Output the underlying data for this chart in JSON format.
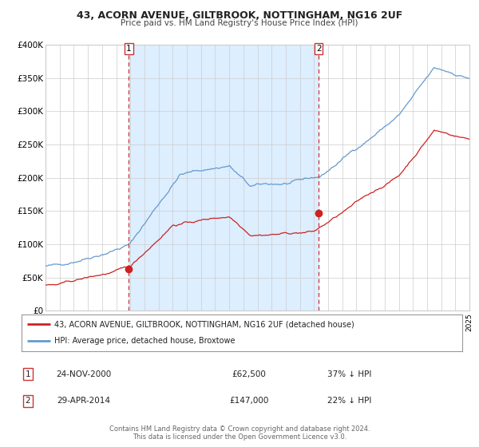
{
  "title": "43, ACORN AVENUE, GILTBROOK, NOTTINGHAM, NG16 2UF",
  "subtitle": "Price paid vs. HM Land Registry's House Price Index (HPI)",
  "background_color": "#ffffff",
  "plot_bg_color": "#ffffff",
  "shaded_region_color": "#ddeeff",
  "grid_color": "#cccccc",
  "hpi_line_color": "#6699cc",
  "price_line_color": "#cc2222",
  "transaction1_x": 2000.9,
  "transaction1_y": 62500,
  "transaction2_x": 2014.33,
  "transaction2_y": 147000,
  "vline_color": "#cc3333",
  "dot_color": "#cc2222",
  "legend_line1": "43, ACORN AVENUE, GILTBROOK, NOTTINGHAM, NG16 2UF (detached house)",
  "legend_line2": "HPI: Average price, detached house, Broxtowe",
  "table_row1": [
    "1",
    "24-NOV-2000",
    "£62,500",
    "37% ↓ HPI"
  ],
  "table_row2": [
    "2",
    "29-APR-2014",
    "£147,000",
    "22% ↓ HPI"
  ],
  "footer1": "Contains HM Land Registry data © Crown copyright and database right 2024.",
  "footer2": "This data is licensed under the Open Government Licence v3.0.",
  "ylim": [
    0,
    400000
  ],
  "xlim": [
    1995,
    2025
  ],
  "yticks": [
    0,
    50000,
    100000,
    150000,
    200000,
    250000,
    300000,
    350000,
    400000
  ],
  "ytick_labels": [
    "£0",
    "£50K",
    "£100K",
    "£150K",
    "£200K",
    "£250K",
    "£300K",
    "£350K",
    "£400K"
  ],
  "xticks": [
    1995,
    1996,
    1997,
    1998,
    1999,
    2000,
    2001,
    2002,
    2003,
    2004,
    2005,
    2006,
    2007,
    2008,
    2009,
    2010,
    2011,
    2012,
    2013,
    2014,
    2015,
    2016,
    2017,
    2018,
    2019,
    2020,
    2021,
    2022,
    2023,
    2024,
    2025
  ]
}
